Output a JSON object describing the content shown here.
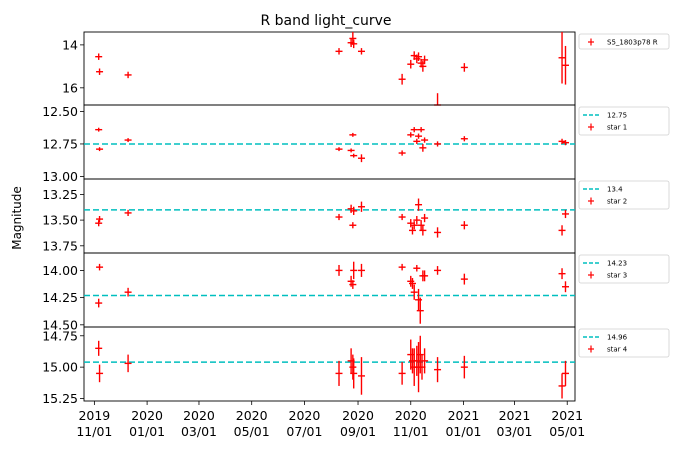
{
  "chart_data": {
    "type": "scatter",
    "title": "R band light_curve",
    "ylabel": "Magnitude",
    "xlabel": "",
    "x_ticks": [
      "2019\n11/01",
      "2020\n01/01",
      "2020\n03/01",
      "2020\n05/01",
      "2020\n07/01",
      "2020\n09/01",
      "2020\n11/01",
      "2021\n01/01",
      "2021\n03/01",
      "2021\n05/01"
    ],
    "x_tick_dates": [
      "2019-11-01",
      "2020-01-01",
      "2020-03-01",
      "2020-05-01",
      "2020-07-01",
      "2020-09-01",
      "2020-11-01",
      "2021-01-01",
      "2021-03-01",
      "2021-05-01"
    ],
    "xlim": [
      "2019-10-20",
      "2021-05-10"
    ],
    "y_inverted": true,
    "panels": [
      {
        "legend": [
          {
            "label": "S5_1803p78 R",
            "kind": "errorbar",
            "color": "#ff0000"
          }
        ],
        "ylim": [
          16.8,
          13.4
        ],
        "yticks": [
          14,
          16
        ],
        "ytick_labels": [
          "14",
          "16"
        ],
        "points": [
          {
            "x": "2019-11-06",
            "y": 14.55,
            "err": 0.15
          },
          {
            "x": "2019-11-07",
            "y": 15.25,
            "err": 0.15
          },
          {
            "x": "2019-12-10",
            "y": 15.4,
            "err": 0.15
          },
          {
            "x": "2020-08-10",
            "y": 14.3,
            "err": 0.15
          },
          {
            "x": "2020-08-24",
            "y": 13.9,
            "err": 0.2
          },
          {
            "x": "2020-08-26",
            "y": 13.7,
            "err": 0.3
          },
          {
            "x": "2020-08-27",
            "y": 13.95,
            "err": 0.2
          },
          {
            "x": "2020-09-05",
            "y": 14.3,
            "err": 0.15
          },
          {
            "x": "2020-10-22",
            "y": 15.6,
            "err": 0.25
          },
          {
            "x": "2020-11-01",
            "y": 14.9,
            "err": 0.2
          },
          {
            "x": "2020-11-05",
            "y": 14.5,
            "err": 0.2
          },
          {
            "x": "2020-11-08",
            "y": 14.65,
            "err": 0.2
          },
          {
            "x": "2020-11-10",
            "y": 14.55,
            "err": 0.2
          },
          {
            "x": "2020-11-13",
            "y": 14.85,
            "err": 0.2
          },
          {
            "x": "2020-11-15",
            "y": 15.0,
            "err": 0.25
          },
          {
            "x": "2020-11-17",
            "y": 14.7,
            "err": 0.2
          },
          {
            "x": "2020-12-02",
            "y": 16.8,
            "err": 0.55
          },
          {
            "x": "2021-01-02",
            "y": 15.05,
            "err": 0.2
          },
          {
            "x": "2021-04-25",
            "y": 14.6,
            "err": 1.2
          },
          {
            "x": "2021-04-29",
            "y": 14.95,
            "err": 0.9
          }
        ]
      },
      {
        "legend": [
          {
            "label": "12.75",
            "kind": "line",
            "color": "#00bfbf"
          },
          {
            "label": "star 1",
            "kind": "errorbar",
            "color": "#ff0000"
          }
        ],
        "ylim": [
          13.02,
          12.45
        ],
        "yticks": [
          12.5,
          12.75,
          13.0
        ],
        "ytick_labels": [
          "12.50",
          "12.75",
          "13.00"
        ],
        "ref_line": 12.75,
        "points": [
          {
            "x": "2019-11-06",
            "y": 12.64,
            "err": 0.015
          },
          {
            "x": "2019-11-07",
            "y": 12.79,
            "err": 0.015
          },
          {
            "x": "2019-12-10",
            "y": 12.72,
            "err": 0.015
          },
          {
            "x": "2020-08-10",
            "y": 12.79,
            "err": 0.015
          },
          {
            "x": "2020-08-24",
            "y": 12.8,
            "err": 0.015
          },
          {
            "x": "2020-08-26",
            "y": 12.68,
            "err": 0.015
          },
          {
            "x": "2020-08-27",
            "y": 12.84,
            "err": 0.015
          },
          {
            "x": "2020-09-05",
            "y": 12.86,
            "err": 0.03
          },
          {
            "x": "2020-10-22",
            "y": 12.82,
            "err": 0.02
          },
          {
            "x": "2020-11-01",
            "y": 12.68,
            "err": 0.02
          },
          {
            "x": "2020-11-05",
            "y": 12.64,
            "err": 0.02
          },
          {
            "x": "2020-11-08",
            "y": 12.73,
            "err": 0.02
          },
          {
            "x": "2020-11-10",
            "y": 12.69,
            "err": 0.02
          },
          {
            "x": "2020-11-13",
            "y": 12.64,
            "err": 0.02
          },
          {
            "x": "2020-11-15",
            "y": 12.78,
            "err": 0.03
          },
          {
            "x": "2020-11-17",
            "y": 12.72,
            "err": 0.02
          },
          {
            "x": "2020-12-02",
            "y": 12.75,
            "err": 0.02
          },
          {
            "x": "2021-01-02",
            "y": 12.71,
            "err": 0.02
          },
          {
            "x": "2021-04-25",
            "y": 12.73,
            "err": 0.02
          },
          {
            "x": "2021-04-29",
            "y": 12.74,
            "err": 0.02
          }
        ]
      },
      {
        "legend": [
          {
            "label": "13.4",
            "kind": "line",
            "color": "#00bfbf"
          },
          {
            "label": "star 2",
            "kind": "errorbar",
            "color": "#ff0000"
          }
        ],
        "ylim": [
          13.82,
          13.1
        ],
        "yticks": [
          13.25,
          13.5,
          13.75
        ],
        "ytick_labels": [
          "13.25",
          "13.50",
          "13.75"
        ],
        "ref_line": 13.4,
        "points": [
          {
            "x": "2019-11-06",
            "y": 13.53,
            "err": 0.03
          },
          {
            "x": "2019-11-07",
            "y": 13.49,
            "err": 0.03
          },
          {
            "x": "2019-12-10",
            "y": 13.43,
            "err": 0.03
          },
          {
            "x": "2020-08-10",
            "y": 13.47,
            "err": 0.03
          },
          {
            "x": "2020-08-24",
            "y": 13.39,
            "err": 0.04
          },
          {
            "x": "2020-08-26",
            "y": 13.55,
            "err": 0.03
          },
          {
            "x": "2020-08-27",
            "y": 13.41,
            "err": 0.04
          },
          {
            "x": "2020-09-05",
            "y": 13.37,
            "err": 0.05
          },
          {
            "x": "2020-10-22",
            "y": 13.47,
            "err": 0.03
          },
          {
            "x": "2020-11-01",
            "y": 13.53,
            "err": 0.04
          },
          {
            "x": "2020-11-03",
            "y": 13.6,
            "err": 0.04
          },
          {
            "x": "2020-11-05",
            "y": 13.55,
            "err": 0.04
          },
          {
            "x": "2020-11-08",
            "y": 13.5,
            "err": 0.04
          },
          {
            "x": "2020-11-10",
            "y": 13.35,
            "err": 0.06
          },
          {
            "x": "2020-11-13",
            "y": 13.55,
            "err": 0.05
          },
          {
            "x": "2020-11-15",
            "y": 13.6,
            "err": 0.05
          },
          {
            "x": "2020-11-17",
            "y": 13.48,
            "err": 0.04
          },
          {
            "x": "2020-12-02",
            "y": 13.62,
            "err": 0.05
          },
          {
            "x": "2021-01-02",
            "y": 13.55,
            "err": 0.04
          },
          {
            "x": "2021-04-25",
            "y": 13.6,
            "err": 0.05
          },
          {
            "x": "2021-04-29",
            "y": 13.44,
            "err": 0.04
          }
        ]
      },
      {
        "legend": [
          {
            "label": "14.23",
            "kind": "line",
            "color": "#00bfbf"
          },
          {
            "label": "star 3",
            "kind": "errorbar",
            "color": "#ff0000"
          }
        ],
        "ylim": [
          14.52,
          13.84
        ],
        "yticks": [
          14.0,
          14.25,
          14.5
        ],
        "ytick_labels": [
          "14.00",
          "14.25",
          "14.50"
        ],
        "ref_line": 14.23,
        "points": [
          {
            "x": "2019-11-06",
            "y": 14.3,
            "err": 0.04
          },
          {
            "x": "2019-11-07",
            "y": 13.97,
            "err": 0.03
          },
          {
            "x": "2019-12-10",
            "y": 14.2,
            "err": 0.04
          },
          {
            "x": "2020-08-10",
            "y": 14.0,
            "err": 0.05
          },
          {
            "x": "2020-08-24",
            "y": 14.1,
            "err": 0.05
          },
          {
            "x": "2020-08-26",
            "y": 14.13,
            "err": 0.04
          },
          {
            "x": "2020-08-27",
            "y": 14.0,
            "err": 0.08
          },
          {
            "x": "2020-09-05",
            "y": 14.0,
            "err": 0.06
          },
          {
            "x": "2020-10-22",
            "y": 13.97,
            "err": 0.03
          },
          {
            "x": "2020-11-01",
            "y": 14.1,
            "err": 0.05
          },
          {
            "x": "2020-11-03",
            "y": 14.12,
            "err": 0.05
          },
          {
            "x": "2020-11-05",
            "y": 14.2,
            "err": 0.07
          },
          {
            "x": "2020-11-08",
            "y": 13.98,
            "err": 0.03
          },
          {
            "x": "2020-11-10",
            "y": 14.27,
            "err": 0.1
          },
          {
            "x": "2020-11-12",
            "y": 14.37,
            "err": 0.12
          },
          {
            "x": "2020-11-15",
            "y": 14.05,
            "err": 0.05
          },
          {
            "x": "2020-11-17",
            "y": 14.05,
            "err": 0.05
          },
          {
            "x": "2020-12-02",
            "y": 14.0,
            "err": 0.04
          },
          {
            "x": "2021-01-02",
            "y": 14.08,
            "err": 0.05
          },
          {
            "x": "2021-04-25",
            "y": 14.03,
            "err": 0.05
          },
          {
            "x": "2021-04-29",
            "y": 14.15,
            "err": 0.05
          }
        ]
      },
      {
        "legend": [
          {
            "label": "14.96",
            "kind": "line",
            "color": "#00bfbf"
          },
          {
            "label": "star 4",
            "kind": "errorbar",
            "color": "#ff0000"
          }
        ],
        "ylim": [
          15.27,
          14.68
        ],
        "yticks": [
          14.75,
          15.0,
          15.25
        ],
        "ytick_labels": [
          "14.75",
          "15.00",
          "15.25"
        ],
        "ref_line": 14.96,
        "points": [
          {
            "x": "2019-11-06",
            "y": 14.85,
            "err": 0.06
          },
          {
            "x": "2019-11-07",
            "y": 15.05,
            "err": 0.07
          },
          {
            "x": "2019-12-10",
            "y": 14.97,
            "err": 0.07
          },
          {
            "x": "2020-08-10",
            "y": 15.05,
            "err": 0.1
          },
          {
            "x": "2020-08-24",
            "y": 14.95,
            "err": 0.1
          },
          {
            "x": "2020-08-26",
            "y": 15.0,
            "err": 0.1
          },
          {
            "x": "2020-08-27",
            "y": 15.05,
            "err": 0.12
          },
          {
            "x": "2020-09-05",
            "y": 15.07,
            "err": 0.15
          },
          {
            "x": "2020-10-22",
            "y": 15.05,
            "err": 0.09
          },
          {
            "x": "2020-11-01",
            "y": 14.9,
            "err": 0.12
          },
          {
            "x": "2020-11-03",
            "y": 14.95,
            "err": 0.1
          },
          {
            "x": "2020-11-05",
            "y": 15.0,
            "err": 0.15
          },
          {
            "x": "2020-11-08",
            "y": 14.95,
            "err": 0.12
          },
          {
            "x": "2020-11-10",
            "y": 15.0,
            "err": 0.2
          },
          {
            "x": "2020-11-12",
            "y": 14.9,
            "err": 0.15
          },
          {
            "x": "2020-11-14",
            "y": 15.0,
            "err": 0.1
          },
          {
            "x": "2020-11-17",
            "y": 14.95,
            "err": 0.1
          },
          {
            "x": "2020-12-02",
            "y": 15.02,
            "err": 0.1
          },
          {
            "x": "2021-01-02",
            "y": 15.0,
            "err": 0.09
          },
          {
            "x": "2021-04-25",
            "y": 15.15,
            "err": 0.1
          },
          {
            "x": "2021-04-29",
            "y": 15.05,
            "err": 0.1
          }
        ]
      }
    ]
  }
}
